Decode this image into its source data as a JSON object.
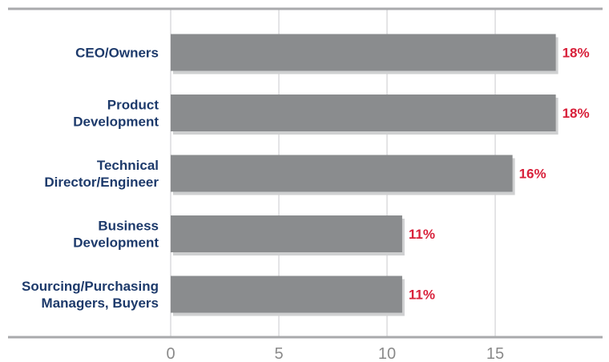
{
  "chart_data": {
    "type": "bar",
    "orientation": "horizontal",
    "categories": [
      [
        "CEO/Owners"
      ],
      [
        "Product",
        "Development"
      ],
      [
        "Technical",
        "Director/Engineer"
      ],
      [
        "Business",
        "Development"
      ],
      [
        "Sourcing/Purchasing",
        "Managers, Buyers"
      ]
    ],
    "values": [
      17.8,
      17.8,
      15.8,
      10.7,
      10.7
    ],
    "data_labels": [
      "18%",
      "18%",
      "16%",
      "11%",
      "11%"
    ],
    "x_ticks": [
      "0",
      "5",
      "10",
      "15"
    ],
    "xlim": [
      0,
      20
    ],
    "grid": true,
    "legend": "none",
    "colors": {
      "bar": "#8a8c8e",
      "bar_shadow": "#cfd0d1",
      "data_label": "#d8203a",
      "category_label": "#1d3a6b",
      "tick_label": "#8a8a8a",
      "axis_line": "#a9aaac",
      "grid": "#c9cacc"
    }
  }
}
